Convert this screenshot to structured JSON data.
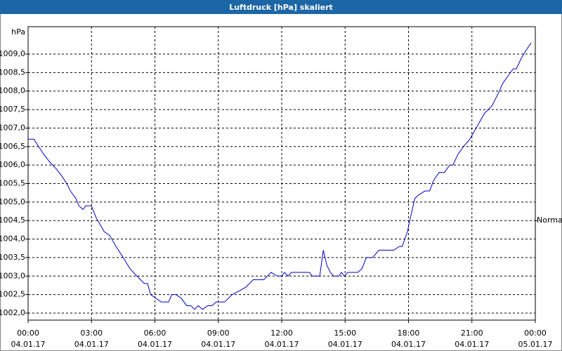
{
  "chart_data": {
    "type": "line",
    "title": "Luftdruck [hPa] skaliert",
    "y_axis_label": "hPa",
    "xlim": [
      0,
      24
    ],
    "ylim": [
      1001.81,
      1009.74
    ],
    "xticks": [
      {
        "value": 0,
        "label": "00:00"
      },
      {
        "value": 3,
        "label": "03:00"
      },
      {
        "value": 6,
        "label": "06:00"
      },
      {
        "value": 9,
        "label": "09:00"
      },
      {
        "value": 12,
        "label": "12:00"
      },
      {
        "value": 15,
        "label": "15:00"
      },
      {
        "value": 18,
        "label": "18:00"
      },
      {
        "value": 21,
        "label": "21:00"
      },
      {
        "value": 24,
        "label": "00:00"
      }
    ],
    "xtick_dates": [
      "04.01.17",
      "04.01.17",
      "04.01.17",
      "04.01.17",
      "04.01.17",
      "04.01.17",
      "04.01.17",
      "04.01.17",
      "05.01.17"
    ],
    "yticks": [
      {
        "value": 1002,
        "label": "1002,0"
      },
      {
        "value": 1002.5,
        "label": "1002,5"
      },
      {
        "value": 1003,
        "label": "1003,0"
      },
      {
        "value": 1003.5,
        "label": "1003,5"
      },
      {
        "value": 1004,
        "label": "1004,0"
      },
      {
        "value": 1004.5,
        "label": "1004,5"
      },
      {
        "value": 1005,
        "label": "1005,0"
      },
      {
        "value": 1005.5,
        "label": "1005,5"
      },
      {
        "value": 1006,
        "label": "1006,0"
      },
      {
        "value": 1006.5,
        "label": "1006,5"
      },
      {
        "value": 1007,
        "label": "1007,0"
      },
      {
        "value": 1007.5,
        "label": "1007,5"
      },
      {
        "value": 1008,
        "label": "1008,0"
      },
      {
        "value": 1008.5,
        "label": "1008,5"
      },
      {
        "value": 1009,
        "label": "1009,0"
      }
    ],
    "grid": true,
    "annotations": [
      {
        "text": "Normal",
        "y": 1004.5
      }
    ],
    "series": [
      {
        "color": "#0000c8",
        "x": [
          0,
          0.27,
          0.5,
          0.73,
          1.0,
          1.16,
          1.33,
          1.6,
          1.83,
          2.0,
          2.26,
          2.4,
          2.6,
          2.73,
          3.0,
          3.2,
          3.4,
          3.6,
          3.86,
          4.16,
          4.5,
          4.82,
          5.15,
          5.5,
          5.65,
          5.8,
          6.05,
          6.3,
          6.65,
          6.8,
          7.0,
          7.25,
          7.5,
          7.7,
          7.88,
          8.05,
          8.25,
          8.5,
          8.7,
          8.9,
          9.3,
          9.65,
          10.0,
          10.3,
          10.65,
          11.15,
          11.5,
          11.8,
          12.0,
          12.13,
          12.3,
          12.46,
          13.3,
          13.45,
          13.8,
          13.97,
          14.13,
          14.3,
          14.46,
          14.7,
          14.83,
          14.96,
          15.13,
          15.6,
          15.8,
          16.0,
          16.3,
          16.6,
          17.3,
          17.56,
          17.7,
          17.95,
          18.1,
          18.3,
          18.5,
          18.78,
          19.0,
          19.2,
          19.45,
          19.7,
          19.95,
          20.1,
          20.35,
          20.6,
          20.9,
          21.1,
          21.3,
          21.6,
          21.95,
          22.3,
          22.45,
          22.7,
          22.95,
          23.1,
          23.35,
          23.56,
          23.8
        ],
        "values": [
          1006.7,
          1006.7,
          1006.5,
          1006.3,
          1006.1,
          1006.0,
          1005.9,
          1005.7,
          1005.5,
          1005.3,
          1005.1,
          1004.9,
          1004.8,
          1004.9,
          1004.9,
          1004.6,
          1004.4,
          1004.2,
          1004.1,
          1003.8,
          1003.5,
          1003.2,
          1003.0,
          1002.8,
          1002.8,
          1002.5,
          1002.4,
          1002.3,
          1002.3,
          1002.5,
          1002.5,
          1002.4,
          1002.2,
          1002.2,
          1002.1,
          1002.2,
          1002.1,
          1002.2,
          1002.2,
          1002.3,
          1002.3,
          1002.5,
          1002.6,
          1002.7,
          1002.9,
          1002.9,
          1003.1,
          1003.0,
          1003.0,
          1003.1,
          1003.0,
          1003.1,
          1003.1,
          1003.0,
          1003.0,
          1003.7,
          1003.3,
          1003.1,
          1003.0,
          1003.0,
          1003.1,
          1003.0,
          1003.1,
          1003.1,
          1003.2,
          1003.5,
          1003.5,
          1003.7,
          1003.7,
          1003.8,
          1003.8,
          1004.2,
          1004.6,
          1005.1,
          1005.2,
          1005.3,
          1005.3,
          1005.6,
          1005.8,
          1005.8,
          1006.0,
          1006.0,
          1006.3,
          1006.5,
          1006.7,
          1006.9,
          1007.1,
          1007.4,
          1007.6,
          1008.0,
          1008.2,
          1008.4,
          1008.6,
          1008.6,
          1008.9,
          1009.1,
          1009.3
        ]
      }
    ]
  }
}
